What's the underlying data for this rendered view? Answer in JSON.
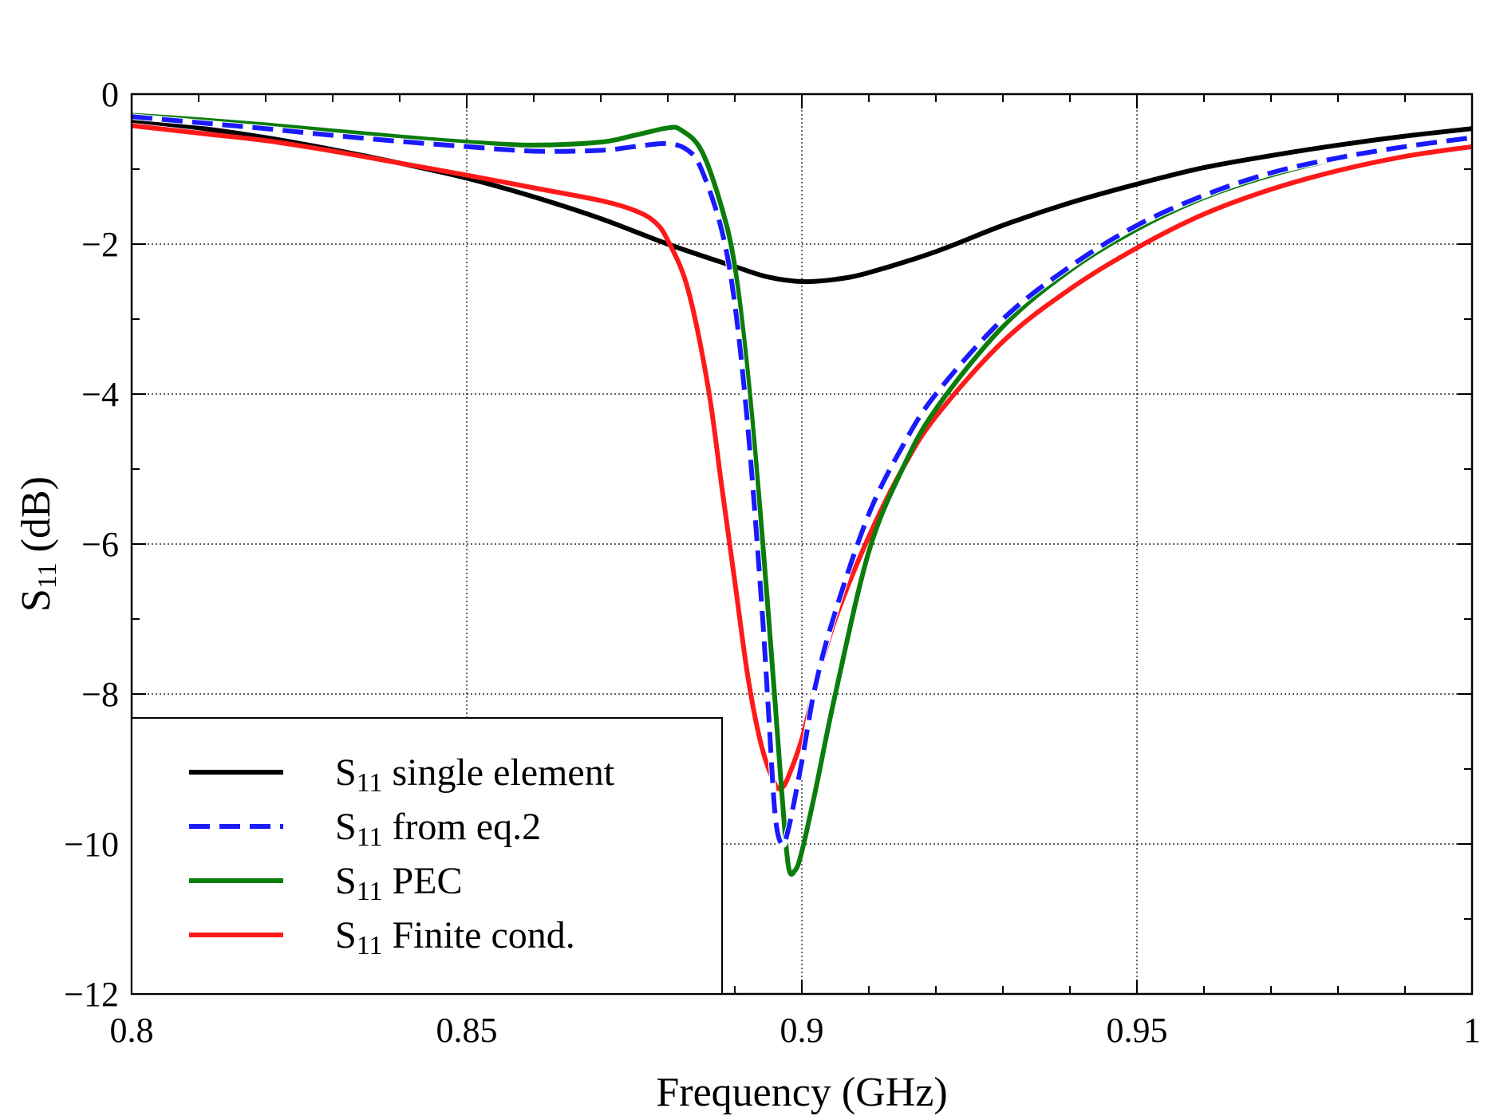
{
  "chart_data": {
    "type": "line",
    "title": "",
    "xlabel": "Frequency (GHz)",
    "ylabel": {
      "base": "S",
      "sub": "11",
      "rest": " (dB)"
    },
    "xlim": [
      0.8,
      1.0
    ],
    "ylim": [
      -12,
      0
    ],
    "xticks": [
      0.8,
      0.85,
      0.9,
      0.95,
      1.0
    ],
    "xtick_labels": [
      "0.8",
      "0.85",
      "0.9",
      "0.95",
      "1"
    ],
    "yticks": [
      0,
      -2,
      -4,
      -6,
      -8,
      -10,
      -12
    ],
    "ytick_labels": [
      "0",
      "−2",
      "−4",
      "−6",
      "−8",
      "−10",
      "−12"
    ],
    "grid": true,
    "legend_position": "bottom-left",
    "series": [
      {
        "name": "single element",
        "name_prefix": "S",
        "name_sub": "11",
        "color": "#000000",
        "dash": "solid",
        "points": [
          [
            0.8,
            -0.35
          ],
          [
            0.81,
            -0.45
          ],
          [
            0.82,
            -0.58
          ],
          [
            0.83,
            -0.74
          ],
          [
            0.84,
            -0.92
          ],
          [
            0.85,
            -1.12
          ],
          [
            0.86,
            -1.37
          ],
          [
            0.87,
            -1.66
          ],
          [
            0.88,
            -2.0
          ],
          [
            0.89,
            -2.3
          ],
          [
            0.895,
            -2.44
          ],
          [
            0.9,
            -2.5
          ],
          [
            0.905,
            -2.47
          ],
          [
            0.91,
            -2.38
          ],
          [
            0.92,
            -2.1
          ],
          [
            0.93,
            -1.75
          ],
          [
            0.94,
            -1.45
          ],
          [
            0.95,
            -1.2
          ],
          [
            0.96,
            -0.98
          ],
          [
            0.97,
            -0.82
          ],
          [
            0.98,
            -0.68
          ],
          [
            0.99,
            -0.56
          ],
          [
            1.0,
            -0.46
          ]
        ]
      },
      {
        "name": "from eq.2",
        "name_prefix": "S",
        "name_sub": "11",
        "color": "#1a1aff",
        "dash": "dashed",
        "points": [
          [
            0.8,
            -0.3
          ],
          [
            0.81,
            -0.38
          ],
          [
            0.82,
            -0.46
          ],
          [
            0.83,
            -0.55
          ],
          [
            0.84,
            -0.63
          ],
          [
            0.85,
            -0.7
          ],
          [
            0.86,
            -0.76
          ],
          [
            0.87,
            -0.75
          ],
          [
            0.875,
            -0.7
          ],
          [
            0.88,
            -0.66
          ],
          [
            0.883,
            -0.75
          ],
          [
            0.885,
            -1.0
          ],
          [
            0.888,
            -1.8
          ],
          [
            0.89,
            -2.8
          ],
          [
            0.892,
            -4.5
          ],
          [
            0.894,
            -6.8
          ],
          [
            0.895,
            -8.2
          ],
          [
            0.896,
            -9.6
          ],
          [
            0.897,
            -10.0
          ],
          [
            0.898,
            -9.8
          ],
          [
            0.9,
            -8.9
          ],
          [
            0.902,
            -7.9
          ],
          [
            0.905,
            -6.9
          ],
          [
            0.91,
            -5.6
          ],
          [
            0.915,
            -4.7
          ],
          [
            0.92,
            -4.0
          ],
          [
            0.93,
            -3.0
          ],
          [
            0.94,
            -2.3
          ],
          [
            0.95,
            -1.75
          ],
          [
            0.96,
            -1.35
          ],
          [
            0.97,
            -1.05
          ],
          [
            0.98,
            -0.85
          ],
          [
            0.99,
            -0.7
          ],
          [
            1.0,
            -0.58
          ]
        ]
      },
      {
        "name": "PEC",
        "name_prefix": "S",
        "name_sub": "11",
        "color": "#0b7d0b",
        "dash": "solid",
        "points": [
          [
            0.8,
            -0.28
          ],
          [
            0.81,
            -0.34
          ],
          [
            0.82,
            -0.41
          ],
          [
            0.83,
            -0.49
          ],
          [
            0.84,
            -0.57
          ],
          [
            0.85,
            -0.64
          ],
          [
            0.86,
            -0.68
          ],
          [
            0.87,
            -0.64
          ],
          [
            0.875,
            -0.55
          ],
          [
            0.88,
            -0.45
          ],
          [
            0.882,
            -0.48
          ],
          [
            0.885,
            -0.75
          ],
          [
            0.888,
            -1.5
          ],
          [
            0.89,
            -2.3
          ],
          [
            0.892,
            -3.8
          ],
          [
            0.894,
            -5.8
          ],
          [
            0.896,
            -8.1
          ],
          [
            0.897,
            -9.3
          ],
          [
            0.898,
            -10.3
          ],
          [
            0.899,
            -10.35
          ],
          [
            0.9,
            -10.1
          ],
          [
            0.902,
            -9.3
          ],
          [
            0.905,
            -8.0
          ],
          [
            0.91,
            -6.1
          ],
          [
            0.915,
            -5.0
          ],
          [
            0.92,
            -4.2
          ],
          [
            0.93,
            -3.1
          ],
          [
            0.94,
            -2.35
          ],
          [
            0.95,
            -1.8
          ],
          [
            0.96,
            -1.38
          ],
          [
            0.97,
            -1.08
          ],
          [
            0.98,
            -0.86
          ],
          [
            0.99,
            -0.7
          ],
          [
            1.0,
            -0.58
          ]
        ]
      },
      {
        "name": "Finite cond.",
        "name_prefix": "S",
        "name_sub": "11",
        "color": "#ff1a1a",
        "dash": "solid",
        "points": [
          [
            0.8,
            -0.42
          ],
          [
            0.81,
            -0.52
          ],
          [
            0.82,
            -0.62
          ],
          [
            0.83,
            -0.76
          ],
          [
            0.84,
            -0.92
          ],
          [
            0.85,
            -1.08
          ],
          [
            0.86,
            -1.25
          ],
          [
            0.87,
            -1.42
          ],
          [
            0.875,
            -1.55
          ],
          [
            0.878,
            -1.7
          ],
          [
            0.88,
            -1.95
          ],
          [
            0.883,
            -2.6
          ],
          [
            0.886,
            -3.9
          ],
          [
            0.888,
            -5.2
          ],
          [
            0.89,
            -6.5
          ],
          [
            0.892,
            -7.8
          ],
          [
            0.894,
            -8.7
          ],
          [
            0.896,
            -9.2
          ],
          [
            0.897,
            -9.25
          ],
          [
            0.898,
            -9.1
          ],
          [
            0.9,
            -8.6
          ],
          [
            0.902,
            -7.9
          ],
          [
            0.905,
            -7.0
          ],
          [
            0.91,
            -5.9
          ],
          [
            0.915,
            -5.0
          ],
          [
            0.92,
            -4.3
          ],
          [
            0.93,
            -3.3
          ],
          [
            0.94,
            -2.6
          ],
          [
            0.95,
            -2.05
          ],
          [
            0.96,
            -1.6
          ],
          [
            0.97,
            -1.27
          ],
          [
            0.98,
            -1.02
          ],
          [
            0.99,
            -0.83
          ],
          [
            1.0,
            -0.7
          ]
        ]
      }
    ]
  }
}
